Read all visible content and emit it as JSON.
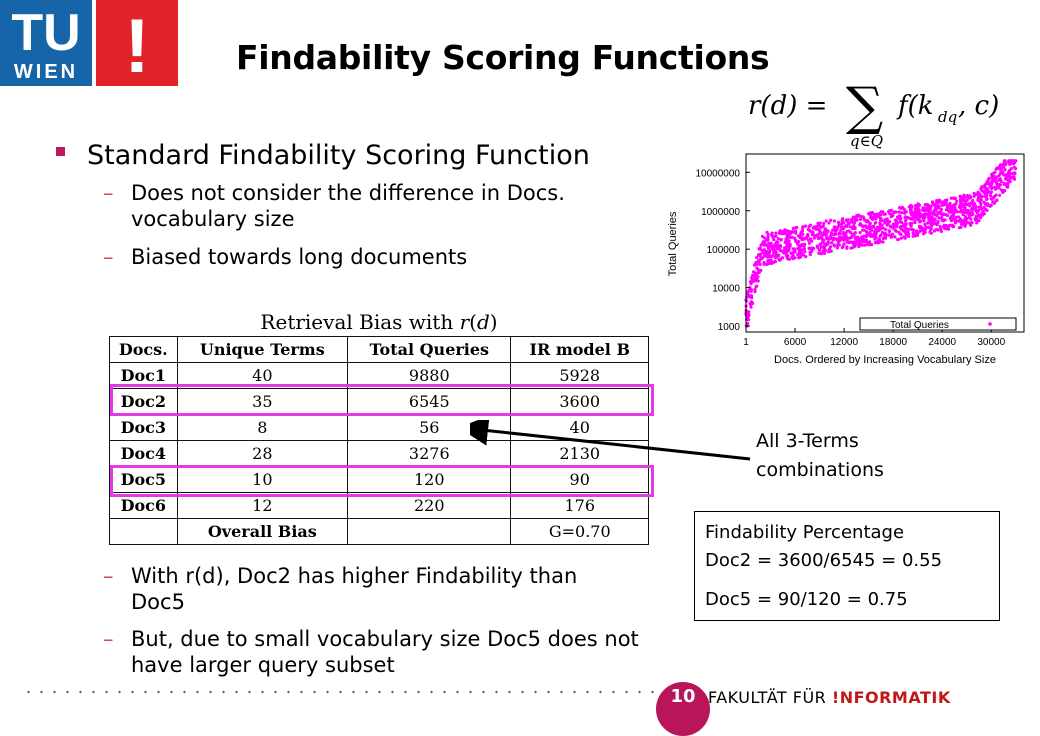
{
  "title": "Findability Scoring Functions",
  "logo": {
    "line1": "TU",
    "line2": "WIEN",
    "mark": "!"
  },
  "formula": "r(d) = Σ_{q∈Q} f(k_dq, c)",
  "bullets": {
    "main": "Standard Findability Scoring Function",
    "sub1_line1": "Does not consider the difference in Docs.",
    "sub1_line2": "vocabulary size",
    "sub2": "Biased towards long documents",
    "sub3_line1": "With r(d), Doc2 has higher Findability than",
    "sub3_line2": "Doc5",
    "sub4_line1": "But, due to small vocabulary size Doc5 does not",
    "sub4_line2": "have larger query subset",
    "dash": "–"
  },
  "table": {
    "title": "Retrieval Bias with r(d)",
    "headers": [
      "Docs.",
      "Unique Terms",
      "Total Queries",
      "IR model B"
    ],
    "rows": [
      [
        "Doc1",
        "40",
        "9880",
        "5928"
      ],
      [
        "Doc2",
        "35",
        "6545",
        "3600"
      ],
      [
        "Doc3",
        "8",
        "56",
        "40"
      ],
      [
        "Doc4",
        "28",
        "3276",
        "2130"
      ],
      [
        "Doc5",
        "10",
        "120",
        "90"
      ],
      [
        "Doc6",
        "12",
        "220",
        "176"
      ]
    ],
    "footer_label": "Overall Bias",
    "footer_value": "G=0.70"
  },
  "callout": {
    "line1": "All 3-Terms",
    "line2": "combinations"
  },
  "box": {
    "line1": "Findability Percentage",
    "line2": "Doc2 = 3600/6545 = 0.55",
    "line3": "Doc5 = 90/120 = 0.75"
  },
  "footer": {
    "page": "10",
    "faculty": "FAKULTÄT  FÜR",
    "informatik": "!NFORMATIK"
  },
  "chart_data": {
    "type": "scatter",
    "ylabel": "Total Queries",
    "xlabel": "Docs. Ordered by Increasing Vocabulary Size",
    "xticks": [
      "1",
      "6000",
      "12000",
      "18000",
      "24000",
      "30000"
    ],
    "yticks": [
      "1000",
      "10000",
      "100000",
      "1000000",
      "10000000"
    ],
    "yscale": "log",
    "xlim": [
      1,
      34000
    ],
    "ylim": [
      700,
      30000000
    ],
    "legend": "Total Queries",
    "legend_position": "bottom-right",
    "color": "#ff00ff"
  }
}
